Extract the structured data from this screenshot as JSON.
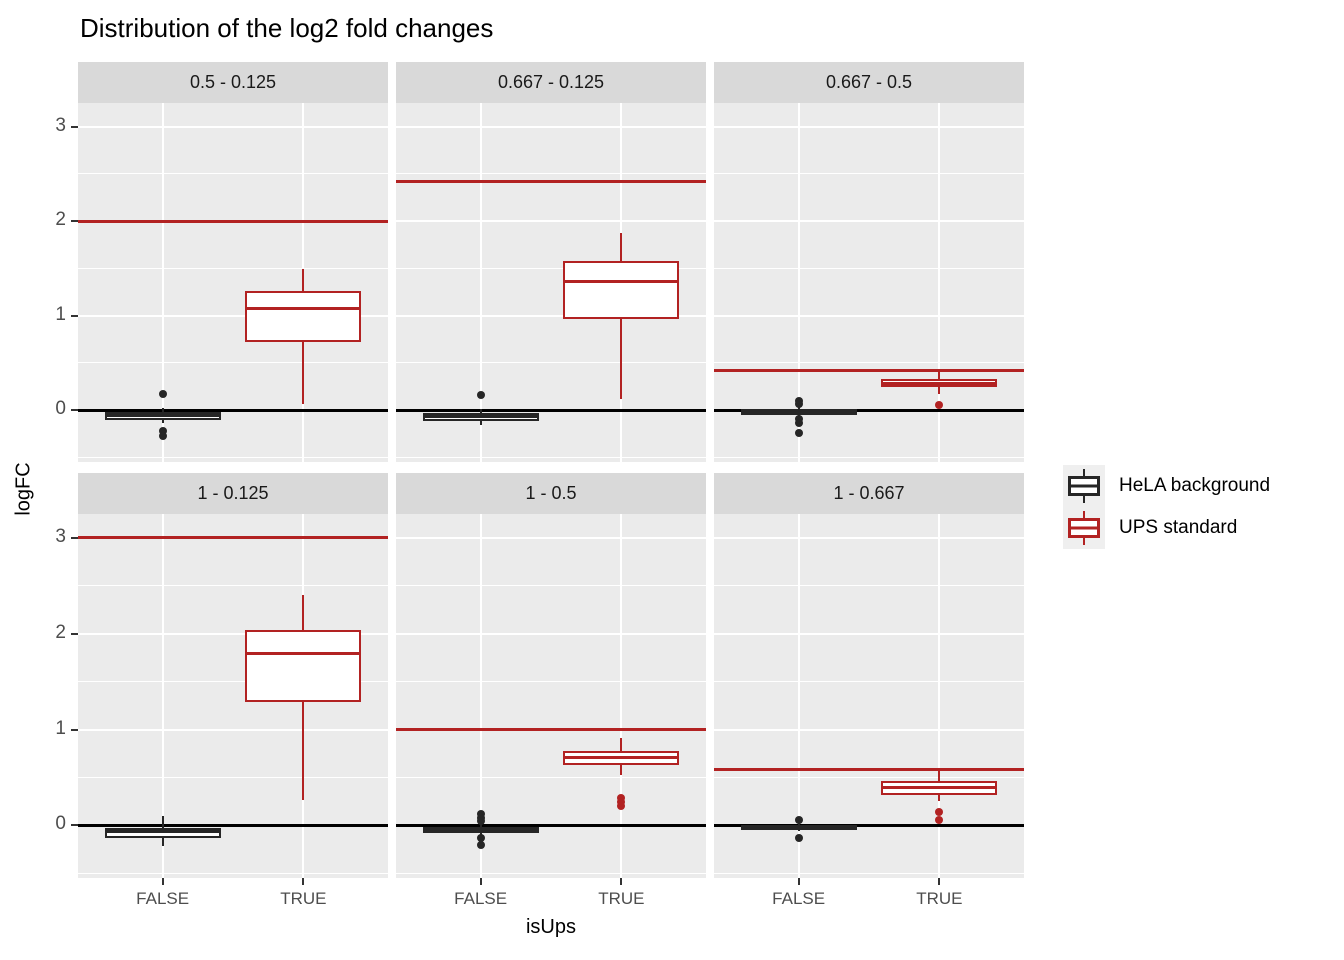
{
  "chart_data": {
    "type": "boxplot",
    "title": "Distribution of the log2 fold changes",
    "xlabel": "isUps",
    "ylabel": "logFC",
    "x_categories": [
      "FALSE",
      "TRUE"
    ],
    "y_ticks": [
      "0",
      "1",
      "2",
      "3"
    ],
    "ylim": [
      -0.55,
      3.25
    ],
    "grid": "white major (0,1,2,3) and minor (0.5 steps) gridlines on gray panels",
    "facet_layout": "2 rows x 3 columns",
    "zero_line": 0,
    "legend": {
      "position": "right",
      "items": [
        {
          "label": "HeLA background",
          "color": "#262626"
        },
        {
          "label": "UPS standard",
          "color": "#B22222"
        }
      ]
    },
    "facets": [
      {
        "label": "0.5 - 0.125",
        "hline": 2.0,
        "boxes": [
          {
            "x": "FALSE",
            "series": "HeLA background",
            "whisker_low": -0.14,
            "q1": -0.11,
            "median": -0.06,
            "q3": -0.02,
            "whisker_high": 0.02,
            "outliers": [
              0.17,
              -0.22,
              -0.28
            ]
          },
          {
            "x": "TRUE",
            "series": "UPS standard",
            "whisker_low": 0.06,
            "q1": 0.72,
            "median": 1.07,
            "q3": 1.26,
            "whisker_high": 1.49,
            "outliers": []
          }
        ]
      },
      {
        "label": "0.667 - 0.125",
        "hline": 2.42,
        "boxes": [
          {
            "x": "FALSE",
            "series": "HeLA background",
            "whisker_low": -0.16,
            "q1": -0.12,
            "median": -0.07,
            "q3": -0.03,
            "whisker_high": 0.01,
            "outliers": [
              0.16
            ]
          },
          {
            "x": "TRUE",
            "series": "UPS standard",
            "whisker_low": 0.12,
            "q1": 0.96,
            "median": 1.36,
            "q3": 1.58,
            "whisker_high": 1.87,
            "outliers": []
          }
        ]
      },
      {
        "label": "0.667 - 0.5",
        "hline": 0.42,
        "boxes": [
          {
            "x": "FALSE",
            "series": "HeLA background",
            "whisker_low": -0.08,
            "q1": -0.05,
            "median": -0.02,
            "q3": 0.01,
            "whisker_high": 0.04,
            "outliers": [
              0.1,
              0.06,
              -0.1,
              -0.14,
              -0.24
            ]
          },
          {
            "x": "TRUE",
            "series": "UPS standard",
            "whisker_low": 0.17,
            "q1": 0.24,
            "median": 0.28,
            "q3": 0.33,
            "whisker_high": 0.4,
            "outliers": [
              0.05
            ]
          }
        ]
      },
      {
        "label": "1 - 0.125",
        "hline": 3.0,
        "boxes": [
          {
            "x": "FALSE",
            "series": "HeLA background",
            "whisker_low": -0.22,
            "q1": -0.13,
            "median": -0.06,
            "q3": -0.03,
            "whisker_high": 0.1,
            "outliers": []
          },
          {
            "x": "TRUE",
            "series": "UPS standard",
            "whisker_low": 0.26,
            "q1": 1.29,
            "median": 1.79,
            "q3": 2.04,
            "whisker_high": 2.4,
            "outliers": []
          }
        ]
      },
      {
        "label": "1 - 0.5",
        "hline": 1.0,
        "boxes": [
          {
            "x": "FALSE",
            "series": "HeLA background",
            "whisker_low": -0.1,
            "q1": -0.08,
            "median": -0.05,
            "q3": -0.02,
            "whisker_high": 0.01,
            "outliers": [
              0.12,
              0.08,
              0.04,
              -0.13,
              -0.21
            ]
          },
          {
            "x": "TRUE",
            "series": "UPS standard",
            "whisker_low": 0.53,
            "q1": 0.63,
            "median": 0.71,
            "q3": 0.78,
            "whisker_high": 0.91,
            "outliers": [
              0.29,
              0.24,
              0.2
            ]
          }
        ]
      },
      {
        "label": "1 - 0.667",
        "hline": 0.585,
        "boxes": [
          {
            "x": "FALSE",
            "series": "HeLA background",
            "whisker_low": -0.06,
            "q1": -0.05,
            "median": -0.03,
            "q3": 0.0,
            "whisker_high": 0.02,
            "outliers": [
              0.06,
              -0.13
            ]
          },
          {
            "x": "TRUE",
            "series": "UPS standard",
            "whisker_low": 0.25,
            "q1": 0.32,
            "median": 0.4,
            "q3": 0.46,
            "whisker_high": 0.57,
            "outliers": [
              0.14,
              0.06
            ]
          }
        ]
      }
    ]
  },
  "colors": {
    "hela": "#262626",
    "ups": "#B22222",
    "panel_bg": "#EBEBEB",
    "strip_bg": "#D9D9D9",
    "grid": "#FFFFFF",
    "zero_line": "#000000",
    "tick_text": "#4D4D4D",
    "legend_key_bg": "#EFEFEF"
  }
}
